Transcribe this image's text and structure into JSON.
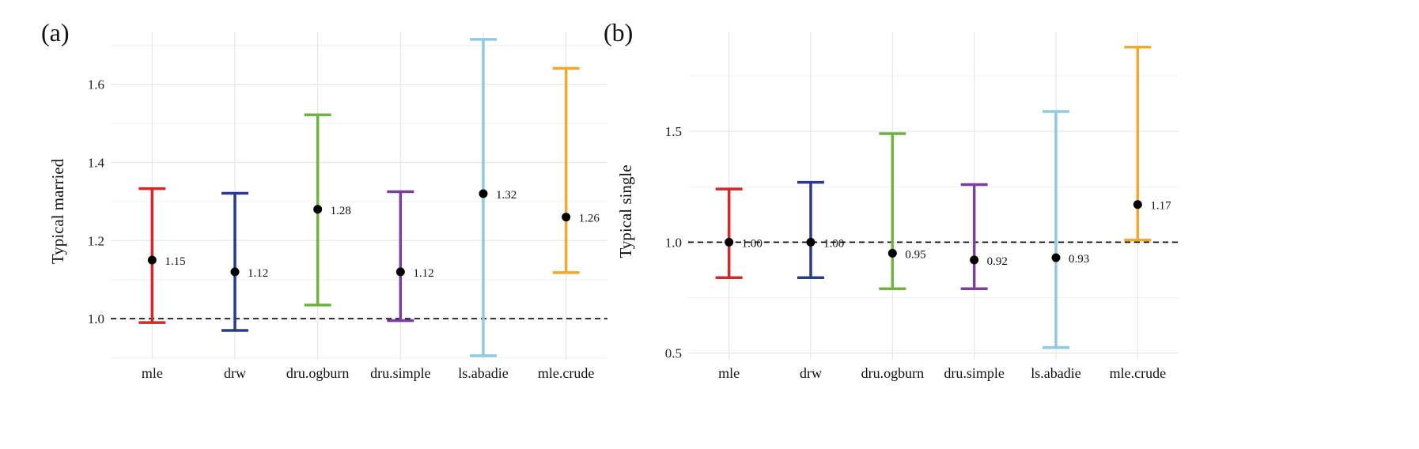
{
  "chart_data": [
    {
      "type": "errorbar",
      "panel_label": "(a)",
      "xlabel": "",
      "ylabel": "Typical married",
      "categories": [
        "mle",
        "drw",
        "dru.ogburn",
        "dru.simple",
        "ls.abadie",
        "mle.crude"
      ],
      "estimates": [
        1.15,
        1.12,
        1.28,
        1.12,
        1.32,
        1.26
      ],
      "point_labels": [
        "1.15",
        "1.12",
        "1.28",
        "1.12",
        "1.32",
        "1.26"
      ],
      "lower": [
        0.99,
        0.97,
        1.035,
        0.995,
        0.905,
        1.118
      ],
      "upper": [
        1.333,
        1.321,
        1.522,
        1.325,
        1.715,
        1.641
      ],
      "colors": [
        "#d62728",
        "#2b3a8f",
        "#6db33f",
        "#7b3f9e",
        "#8ecae6",
        "#f0a830"
      ],
      "yticks": [
        1.0,
        1.2,
        1.4,
        1.6
      ],
      "ytick_labels": [
        "1.0",
        "1.2",
        "1.4",
        "1.6"
      ],
      "reference_line": 1.0,
      "ylim": [
        0.895,
        1.735
      ],
      "grid": true
    },
    {
      "type": "errorbar",
      "panel_label": "(b)",
      "xlabel": "",
      "ylabel": "Typical single",
      "categories": [
        "mle",
        "drw",
        "dru.ogburn",
        "dru.simple",
        "ls.abadie",
        "mle.crude"
      ],
      "estimates": [
        1.0,
        1.0,
        0.95,
        0.92,
        0.93,
        1.17
      ],
      "point_labels": [
        "1.00",
        "1.00",
        "0.95",
        "0.92",
        "0.93",
        "1.17"
      ],
      "lower": [
        0.84,
        0.84,
        0.79,
        0.79,
        0.525,
        1.01
      ],
      "upper": [
        1.24,
        1.27,
        1.49,
        1.26,
        1.59,
        1.88
      ],
      "colors": [
        "#d62728",
        "#2b3a8f",
        "#6db33f",
        "#7b3f9e",
        "#8ecae6",
        "#f0a830"
      ],
      "yticks": [
        0.5,
        1.0,
        1.5
      ],
      "ytick_labels": [
        "0.5",
        "1.0",
        "1.5"
      ],
      "reference_line": 1.0,
      "ylim": [
        0.47,
        1.95
      ],
      "grid": true
    }
  ]
}
